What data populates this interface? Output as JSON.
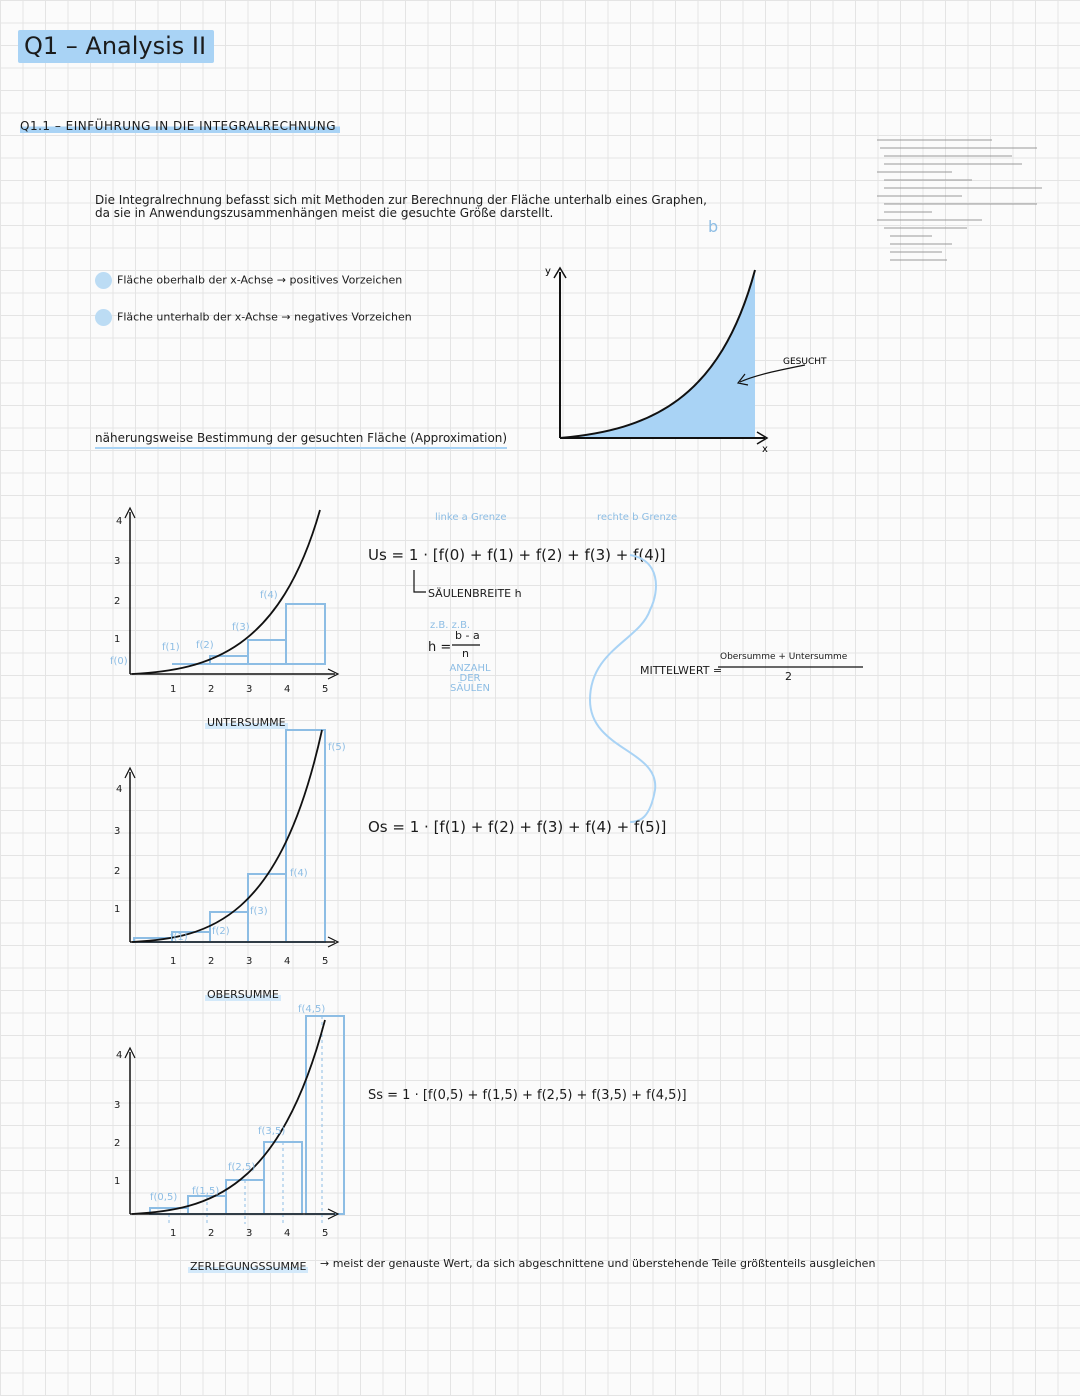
{
  "title": "Q1 – Analysis II",
  "section": "Q1.1 – EINFÜHRUNG IN DIE INTEGRALRECHNUNG",
  "intro_line1": "Die Integralrechnung befasst sich mit Methoden zur Berechnung der Fläche unterhalb eines Graphen,",
  "intro_line2": "da sie in Anwendungszusammenhängen meist die gesuchte Größe darstellt.",
  "bullets": [
    "Fläche oberhalb der x-Achse → positives Vorzeichen",
    "Fläche unterhalb der x-Achse → negatives Vorzeichen"
  ],
  "approx_heading": "näherungsweise Bestimmung der gesuchten Fläche (Approximation)",
  "top_graph": {
    "y_label": "y",
    "x_label": "x",
    "area_label": "GESUCHT",
    "b_label": "b"
  },
  "untersumme": {
    "caption": "UNTERSUMME",
    "y_ticks": [
      "4",
      "3",
      "2",
      "1"
    ],
    "x_ticks": [
      "1",
      "2",
      "3",
      "4",
      "5"
    ],
    "labels": [
      "f(0)",
      "f(1)",
      "f(2)",
      "f(3)",
      "f(4)"
    ],
    "formula": "Us = 1 · [f(0) + f(1) + f(2) + f(3) + f(4)]",
    "left_bound": "linke a Grenze",
    "right_bound": "rechte b Grenze",
    "width_label": "SÄULENBREITE h",
    "h_formula_left": "h =",
    "h_num": "b - a",
    "h_den": "n",
    "h_note_top": "z.B. z.B.",
    "h_note": "ANZAHL DER SÄULEN"
  },
  "obersumme": {
    "caption": "OBERSUMME",
    "labels": [
      "f(1)",
      "f(2)",
      "f(3)",
      "f(4)",
      "f(5)"
    ],
    "formula": "Os = 1 · [f(1) + f(2) + f(3) + f(4) + f(5)]"
  },
  "mittelwert": {
    "label": "MITTELWERT =",
    "numerator": "Obersumme + Untersumme",
    "denominator": "2"
  },
  "zerlegung": {
    "caption": "ZERLEGUNGSSUMME",
    "labels": [
      "f(0,5)",
      "f(1,5)",
      "f(2,5)",
      "f(3,5)",
      "f(4,5)"
    ],
    "formula": "Ss = 1 · [f(0,5) + f(1,5) + f(2,5) + f(3,5) + f(4,5)]",
    "note": "→ meist der genauste Wert, da sich abgeschnittene und überstehende Teile größtenteils ausgleichen"
  }
}
